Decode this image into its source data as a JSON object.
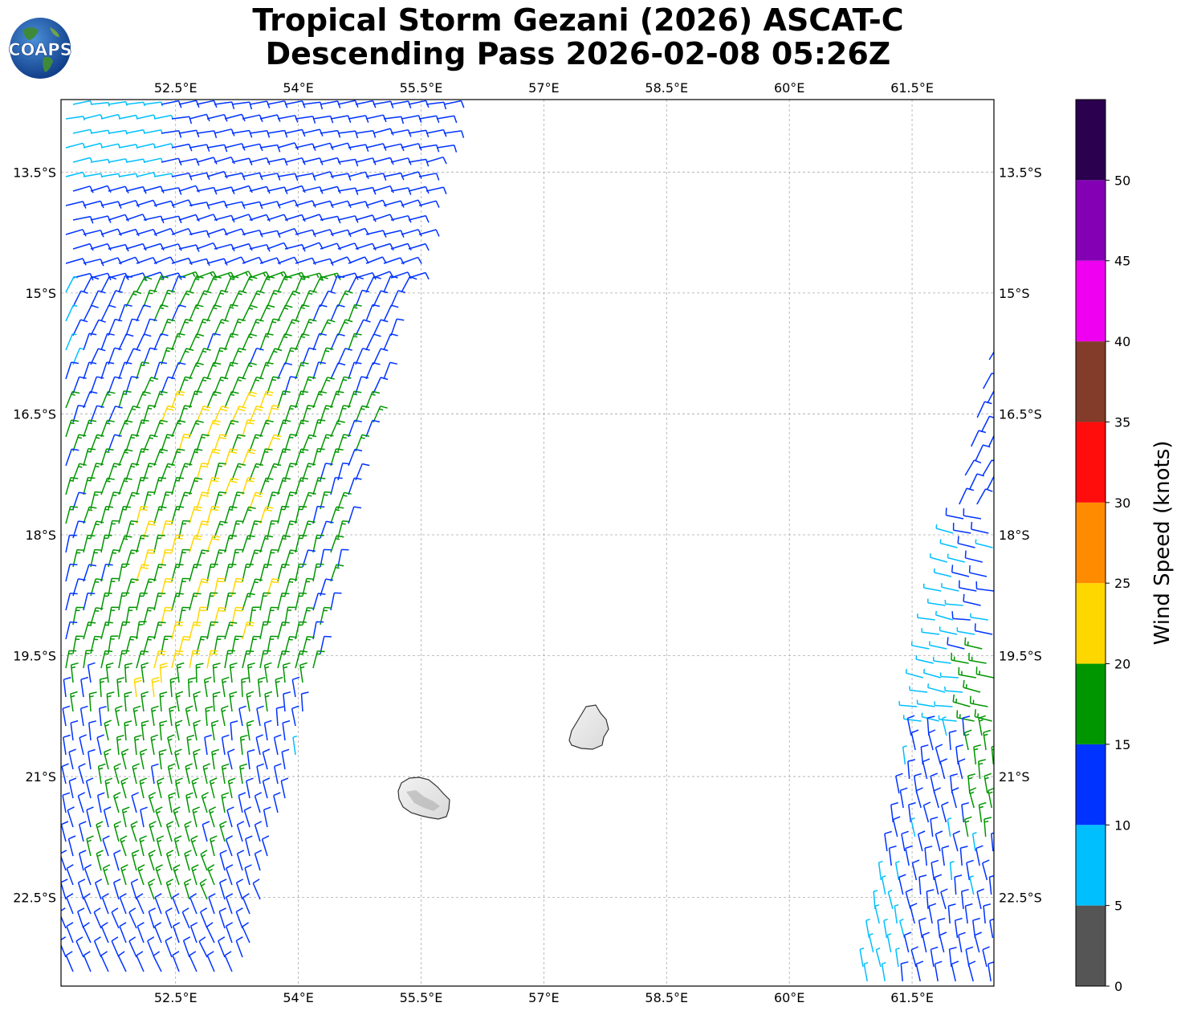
{
  "title": {
    "line1": "Tropical Storm Gezani (2026) ASCAT-C",
    "line2": "Descending Pass 2026-02-08 05:26Z"
  },
  "logo": {
    "text": "COAPS",
    "icon": "globe-logo"
  },
  "map": {
    "lon_range": [
      51.1,
      62.5
    ],
    "lat_range": [
      -23.6,
      -12.6
    ],
    "lon_ticks": [
      "52.5°E",
      "54°E",
      "55.5°E",
      "57°E",
      "58.5°E",
      "60°E",
      "61.5°E"
    ],
    "lon_tick_values": [
      52.5,
      54,
      55.5,
      57,
      58.5,
      60,
      61.5
    ],
    "lat_ticks": [
      "13.5°S",
      "15°S",
      "16.5°S",
      "18°S",
      "19.5°S",
      "21°S",
      "22.5°S"
    ],
    "lat_tick_values": [
      -13.5,
      -15,
      -16.5,
      -18,
      -19.5,
      -21,
      -22.5
    ],
    "grid": true,
    "islands": [
      "Réunion",
      "Mauritius"
    ]
  },
  "colorbar": {
    "label": "Wind Speed (knots)",
    "ticks": [
      "0",
      "5",
      "10",
      "15",
      "20",
      "25",
      "30",
      "35",
      "40",
      "45",
      "50"
    ],
    "bins": [
      {
        "min": 0,
        "max": 5,
        "color": "#555555"
      },
      {
        "min": 5,
        "max": 10,
        "color": "#00bfff"
      },
      {
        "min": 10,
        "max": 15,
        "color": "#0033ff"
      },
      {
        "min": 15,
        "max": 20,
        "color": "#009600"
      },
      {
        "min": 20,
        "max": 25,
        "color": "#ffd700"
      },
      {
        "min": 25,
        "max": 30,
        "color": "#ff8c00"
      },
      {
        "min": 30,
        "max": 35,
        "color": "#ff0d0d"
      },
      {
        "min": 35,
        "max": 40,
        "color": "#833c2a"
      },
      {
        "min": 40,
        "max": 45,
        "color": "#f000f0"
      },
      {
        "min": 45,
        "max": 50,
        "color": "#8400b5"
      },
      {
        "min": 50,
        "max": 55,
        "color": "#2a004f"
      }
    ]
  }
}
